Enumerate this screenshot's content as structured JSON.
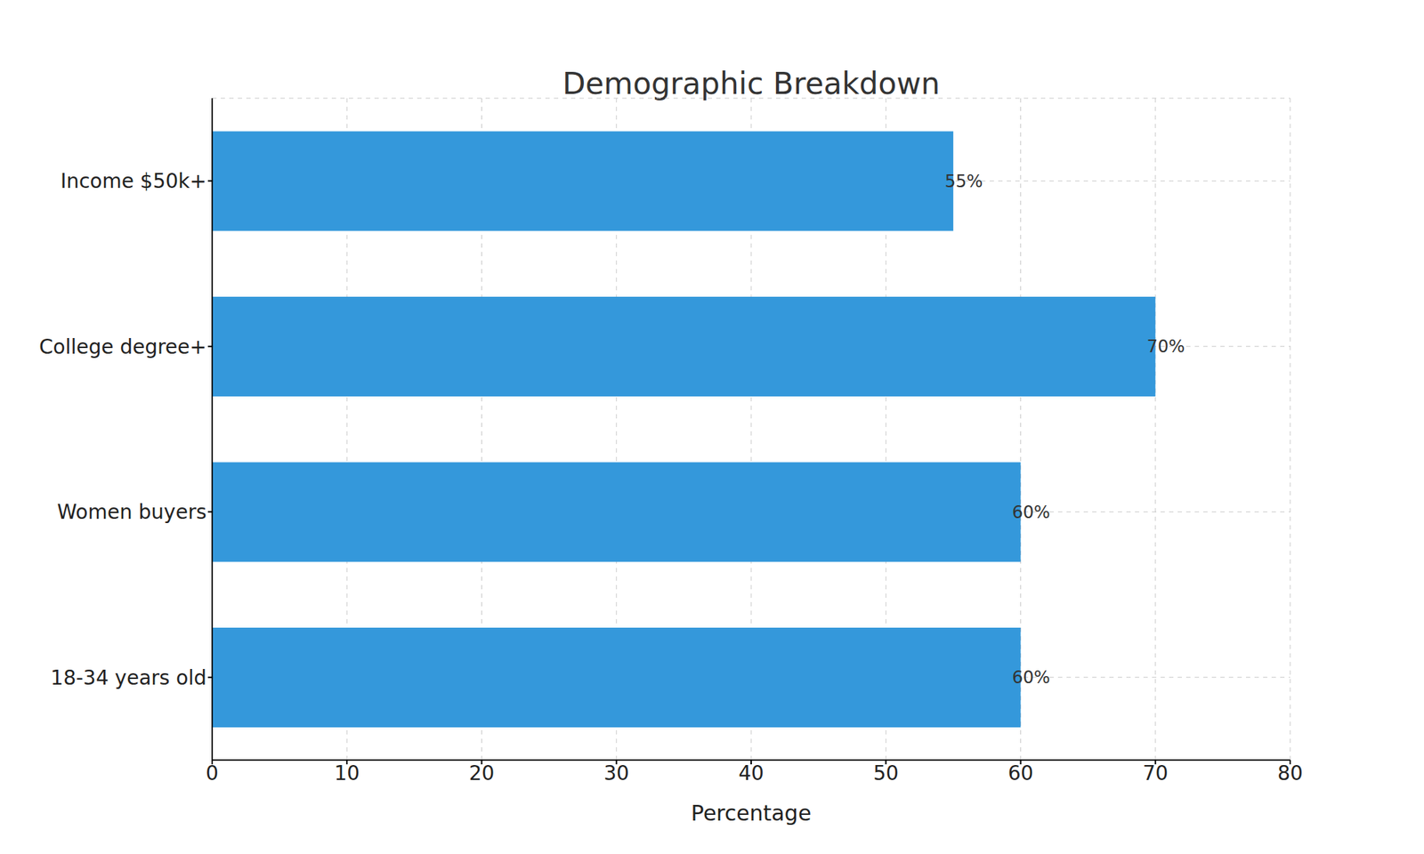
{
  "chart_data": {
    "type": "bar",
    "title": "Demographic Breakdown",
    "orientation": "horizontal",
    "categories": [
      "18-34 years old",
      "Women buyers",
      "College degree+",
      "Income $50k+"
    ],
    "values": [
      60,
      60,
      70,
      55
    ],
    "value_labels": [
      "60%",
      "60%",
      "70%",
      "55%"
    ],
    "data_labels": true,
    "color": "#3498db",
    "xlabel": "Percentage",
    "xlim": [
      0,
      80
    ],
    "xticks": [
      0,
      10,
      20,
      30,
      40,
      50,
      60,
      70,
      80
    ],
    "grid": true
  }
}
